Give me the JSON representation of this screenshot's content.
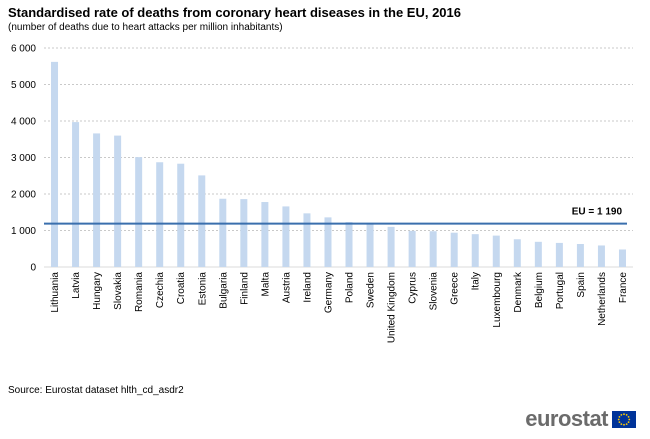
{
  "title": "Standardised rate of deaths from coronary heart diseases in the EU, 2016",
  "subtitle": "(number of deaths due to heart attacks per million inhabitants)",
  "source": "Source: Eurostat dataset hlth_cd_asdr2",
  "logo": {
    "text": "eurostat",
    "flag_color": "#003399",
    "star_color": "#ffcc00"
  },
  "colors": {
    "bar": "#c5d8ef",
    "reference_line": "#3a6fad",
    "grid": "#b8b8b8"
  },
  "chart_data": {
    "type": "bar",
    "categories": [
      "Lithuania",
      "Latvia",
      "Hungary",
      "Slovakia",
      "Romania",
      "Czechia",
      "Croatia",
      "Estonia",
      "Bulgaria",
      "Finland",
      "Malta",
      "Austria",
      "Ireland",
      "Germany",
      "Poland",
      "Sweden",
      "United Kingdom",
      "Cyprus",
      "Slovenia",
      "Greece",
      "Italy",
      "Luxembourg",
      "Denmark",
      "Belgium",
      "Portugal",
      "Spain",
      "Netherlands",
      "France"
    ],
    "values": [
      5620,
      3970,
      3660,
      3600,
      3010,
      2870,
      2830,
      2510,
      1870,
      1860,
      1780,
      1660,
      1470,
      1360,
      1230,
      1210,
      1100,
      990,
      980,
      940,
      900,
      860,
      760,
      690,
      660,
      630,
      590,
      480
    ],
    "ylim": [
      0,
      6000
    ],
    "yticks": [
      0,
      1000,
      2000,
      3000,
      4000,
      5000,
      6000
    ],
    "ytick_labels": [
      "0",
      "1 000",
      "2 000",
      "3 000",
      "4 000",
      "5 000",
      "6 000"
    ],
    "grid": true,
    "reference": {
      "value": 1190,
      "label": "EU = 1 190"
    }
  }
}
